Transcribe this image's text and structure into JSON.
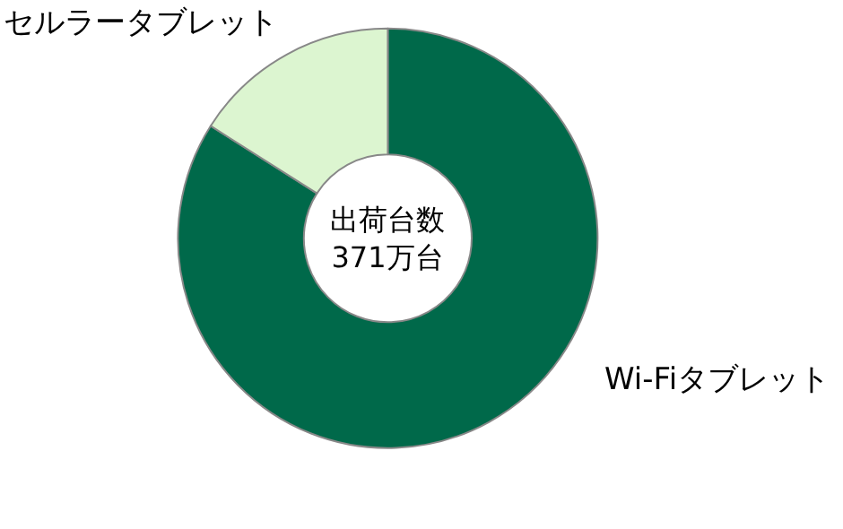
{
  "chart_data": {
    "type": "donut",
    "categories": [
      "Wi-Fiタブレット",
      "セルラータブレット"
    ],
    "values": [
      84,
      16
    ],
    "colors": [
      "#00694a",
      "#dcf5d0"
    ],
    "annotations": [
      "出荷台数\n371万台"
    ],
    "legend": false
  }
}
